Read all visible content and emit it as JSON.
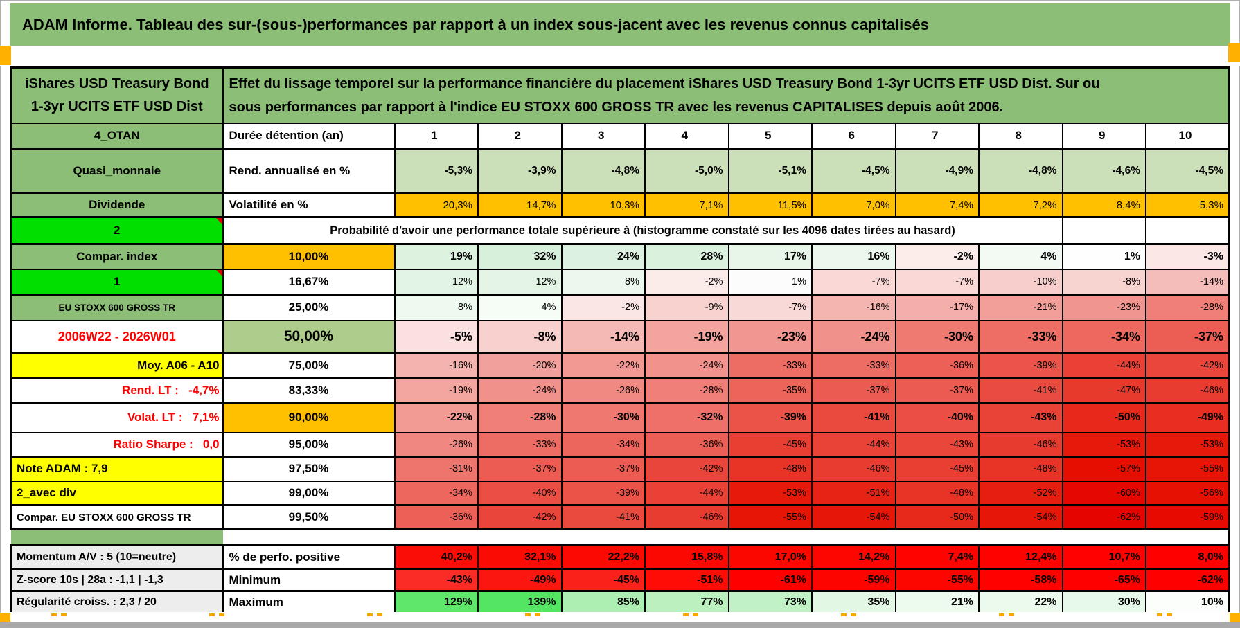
{
  "title_bar": "ADAM Informe. Tableau des sur-(sous-)performances par rapport à un index sous-jacent avec les revenus connus capitalisés",
  "product": {
    "line1": "iShares USD Treasury Bond",
    "line2": "1-3yr UCITS ETF USD Dist"
  },
  "description": {
    "line1": "Effet du lissage temporel sur la performance financière du placement iShares USD Treasury Bond 1-3yr UCITS ETF USD Dist. Sur ou",
    "line2": "sous performances par rapport à l'indice EU STOXX 600 GROSS TR avec les revenus CAPITALISES depuis août 2006."
  },
  "colors": {
    "headergreen": "#8CBE77",
    "palegreen": "#CBDFB8",
    "midgreen": "#AECD8C",
    "brightgreen": "#00DF00",
    "orange": "#FFC000",
    "yellow": "#FFFF00",
    "redtext": "#FF0000",
    "graylabel": "#EDEDED",
    "cornerorange": "#FFB000",
    "bottombar": "#A9A9A9"
  },
  "grid": {
    "duration": {
      "a": "4_OTAN",
      "b": "Durée détention (an)",
      "values": [
        "1",
        "2",
        "3",
        "4",
        "5",
        "6",
        "7",
        "8",
        "9",
        "10"
      ]
    },
    "rend": {
      "a": "Quasi_monnaie",
      "b": "Rend. annualisé en %",
      "values": [
        "-5,3%",
        "-3,9%",
        "-4,8%",
        "-5,0%",
        "-5,1%",
        "-4,5%",
        "-4,9%",
        "-4,8%",
        "-4,6%",
        "-4,5%"
      ],
      "bgs": [
        "#CBDFB8",
        "#CBDFB8",
        "#CBDFB8",
        "#CBDFB8",
        "#CBDFB8",
        "#CBDFB8",
        "#CBDFB8",
        "#CBDFB8",
        "#CBDFB8",
        "#CBDFB8"
      ]
    },
    "volat": {
      "a": "Dividende",
      "b": "Volatilité en %",
      "values": [
        "20,3%",
        "14,7%",
        "10,3%",
        "7,1%",
        "11,5%",
        "7,0%",
        "7,4%",
        "7,2%",
        "8,4%",
        "5,3%"
      ],
      "bgs": [
        "#FFC000",
        "#FFC000",
        "#FFC000",
        "#FFC000",
        "#FFC000",
        "#FFC000",
        "#FFC000",
        "#FFC000",
        "#FFC000",
        "#FFC000"
      ]
    },
    "probhead": {
      "a": "2",
      "text": "Probabilité d'avoir une performance totale supérieure à (histogramme constaté sur les 4096 dates tirées au hasard)"
    },
    "p10": {
      "a": "Compar. index",
      "b": "10,00%",
      "values": [
        "19%",
        "32%",
        "24%",
        "28%",
        "17%",
        "16%",
        "-2%",
        "4%",
        "1%",
        "-3%"
      ],
      "bgs": [
        "#DEF2E0",
        "#D7F0DB",
        "#DCF1DF",
        "#DAF1DE",
        "#E7F6E8",
        "#ECF8ED",
        "#FCEDEB",
        "#F3FAF3",
        "#FEFEFE",
        "#FAE7E6"
      ]
    },
    "p16": {
      "a": "1",
      "b": "16,67%",
      "values": [
        "12%",
        "12%",
        "8%",
        "-2%",
        "1%",
        "-7%",
        "-7%",
        "-10%",
        "-8%",
        "-14%"
      ],
      "bgs": [
        "#E2F4E4",
        "#E4F5E6",
        "#ECF8ED",
        "#FBEBE9",
        "#FDFCFC",
        "#F9D8D6",
        "#F9D8D6",
        "#F7CECB",
        "#F8D4D1",
        "#F5BDBA"
      ]
    },
    "p25": {
      "a": "EU STOXX 600 GROSS TR",
      "b": "25,00%",
      "values": [
        "8%",
        "4%",
        "-2%",
        "-9%",
        "-7%",
        "-16%",
        "-17%",
        "-21%",
        "-23%",
        "-28%"
      ],
      "bgs": [
        "#EEF9EF",
        "#F6FCF6",
        "#FAE7E5",
        "#F8D2CF",
        "#F9D9D7",
        "#F4B4B0",
        "#F4AFAB",
        "#F29E99",
        "#F19590",
        "#EF7F77"
      ]
    },
    "p50": {
      "a": "2006W22 - 2026W01",
      "b": "50,00%",
      "values": [
        "-5%",
        "-8%",
        "-14%",
        "-19%",
        "-23%",
        "-24%",
        "-30%",
        "-33%",
        "-34%",
        "-37%"
      ],
      "bgs": [
        "#FAE1DF",
        "#F8D1CE",
        "#F5B9B5",
        "#F3A49F",
        "#F19690",
        "#F1918B",
        "#EF7A72",
        "#EE6E65",
        "#ED695F",
        "#EC5E54"
      ]
    },
    "p75": {
      "a": "Moy. A06 - A10",
      "b": "75,00%",
      "values": [
        "-16%",
        "-20%",
        "-22%",
        "-24%",
        "-33%",
        "-33%",
        "-36%",
        "-39%",
        "-44%",
        "-42%"
      ],
      "bgs": [
        "#F4B3AF",
        "#F2A09B",
        "#F29993",
        "#F1928C",
        "#ED6D64",
        "#ED6D64",
        "#EC6057",
        "#EB544A",
        "#E94136",
        "#EA463C"
      ]
    },
    "p83": {
      "a": "Rend. LT :   -4,7%",
      "b": "83,33%",
      "values": [
        "-19%",
        "-24%",
        "-26%",
        "-28%",
        "-35%",
        "-37%",
        "-37%",
        "-41%",
        "-47%",
        "-46%"
      ],
      "bgs": [
        "#F3A5A0",
        "#F1918B",
        "#F08982",
        "#EF7F77",
        "#ED645B",
        "#EC5B51",
        "#EC5B51",
        "#EA4B40",
        "#E8392D",
        "#E83C30"
      ]
    },
    "p90": {
      "a": "Volat. LT :   7,1%",
      "b": "90,00%",
      "values": [
        "-22%",
        "-28%",
        "-30%",
        "-32%",
        "-39%",
        "-41%",
        "-40%",
        "-43%",
        "-50%",
        "-49%"
      ],
      "bgs": [
        "#F29A94",
        "#EF7F77",
        "#EF7971",
        "#EE7069",
        "#EB5348",
        "#EA493E",
        "#EB4E43",
        "#E94337",
        "#E7281B",
        "#E72E21"
      ]
    },
    "p95": {
      "a": "Ratio Sharpe :   0,0",
      "b": "95,00%",
      "values": [
        "-26%",
        "-33%",
        "-34%",
        "-36%",
        "-45%",
        "-44%",
        "-43%",
        "-46%",
        "-53%",
        "-53%"
      ],
      "bgs": [
        "#F08881",
        "#ED6C63",
        "#ED665D",
        "#EC5F56",
        "#E93F33",
        "#E94236",
        "#EA463A",
        "#E83B2F",
        "#E61A0B",
        "#E61A0B"
      ]
    },
    "p97": {
      "a": "Note ADAM : 7,9",
      "b": "97,50%",
      "values": [
        "-31%",
        "-37%",
        "-37%",
        "-42%",
        "-48%",
        "-46%",
        "-45%",
        "-48%",
        "-57%",
        "-55%"
      ],
      "bgs": [
        "#EE756D",
        "#EC5C52",
        "#EC5C52",
        "#EA453A",
        "#E83427",
        "#E83C30",
        "#E93F33",
        "#E83427",
        "#E50E00",
        "#E61505"
      ]
    },
    "p99": {
      "a": "2_avec div",
      "b": "99,00%",
      "values": [
        "-34%",
        "-40%",
        "-39%",
        "-44%",
        "-53%",
        "-51%",
        "-48%",
        "-52%",
        "-60%",
        "-56%"
      ],
      "bgs": [
        "#ED675E",
        "#EB4F44",
        "#EB5248",
        "#E94135",
        "#E61A0B",
        "#E72316",
        "#E83427",
        "#E61E10",
        "#E50800",
        "#E61102"
      ]
    },
    "p995": {
      "a": "Compar. EU STOXX 600 GROSS TR",
      "b": "99,50%",
      "values": [
        "-36%",
        "-42%",
        "-41%",
        "-46%",
        "-55%",
        "-54%",
        "-50%",
        "-54%",
        "-62%",
        "-59%"
      ],
      "bgs": [
        "#EC6057",
        "#EA453A",
        "#EA493E",
        "#E83C30",
        "#E61505",
        "#E61708",
        "#E7291C",
        "#E61708",
        "#E50500",
        "#E60A00"
      ]
    },
    "perf": {
      "a": "Momentum A/V : 5 (10=neutre)",
      "b": "% de perfo. positive",
      "values": [
        "40,2%",
        "32,1%",
        "22,2%",
        "15,8%",
        "17,0%",
        "14,2%",
        "7,4%",
        "12,4%",
        "10,7%",
        "8,0%"
      ],
      "bgs": [
        "#F90D06",
        "#FA0B04",
        "#FB0A03",
        "#FC0802",
        "#FC0600",
        "#FD0500",
        "#FE0300",
        "#FE0200",
        "#FF0100",
        "#FF0000"
      ]
    },
    "min": {
      "a": "Z-score 10s | 28a : -1,1 | -1,3",
      "b": "Minimum",
      "values": [
        "-43%",
        "-49%",
        "-45%",
        "-51%",
        "-61%",
        "-59%",
        "-55%",
        "-58%",
        "-65%",
        "-62%"
      ],
      "bgs": [
        "#FB2B25",
        "#FC1610",
        "#FB211B",
        "#FD0D06",
        "#FF0000",
        "#FE0400",
        "#FE0600",
        "#FF0200",
        "#FF0000",
        "#FF0000"
      ]
    },
    "max": {
      "a": "Régularité croiss. : 2,3 / 20",
      "b": "Maximum",
      "values": [
        "129%",
        "139%",
        "85%",
        "77%",
        "73%",
        "35%",
        "21%",
        "22%",
        "30%",
        "10%"
      ],
      "bgs": [
        "#5FE76B",
        "#54E662",
        "#ADEFB3",
        "#BAF1BE",
        "#C1F2C5",
        "#E2F7E4",
        "#EDFAEE",
        "#ECF9ED",
        "#E7F9E9",
        "#FBFEFB"
      ]
    }
  }
}
